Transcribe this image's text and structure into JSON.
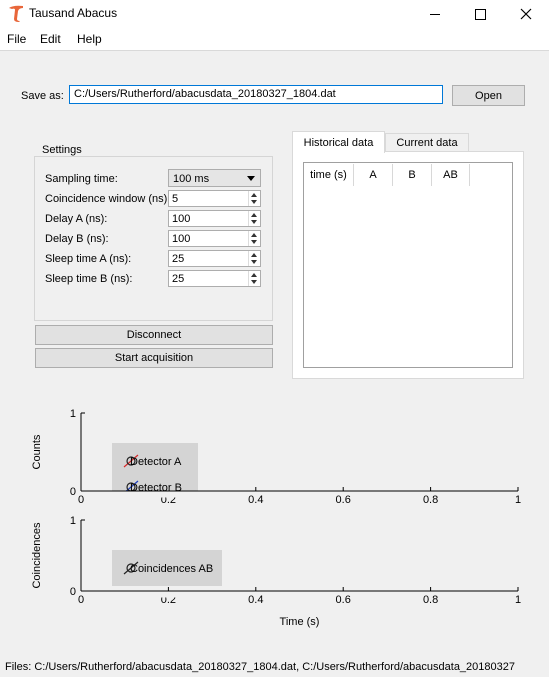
{
  "window": {
    "title": "Tausand Abacus"
  },
  "menu": {
    "file": "File",
    "edit": "Edit",
    "help": "Help"
  },
  "save": {
    "label": "Save as:",
    "path": "C:/Users/Rutherford/abacusdata_20180327_1804.dat",
    "open_label": "Open"
  },
  "settings": {
    "title": "Settings",
    "sampling": {
      "label": "Sampling time:",
      "value": "100 ms"
    },
    "coincidence": {
      "label": "Coincidence window (ns):",
      "value": "5"
    },
    "delay_a": {
      "label": "Delay A (ns):",
      "value": "100"
    },
    "delay_b": {
      "label": "Delay B (ns):",
      "value": "100"
    },
    "sleep_a": {
      "label": "Sleep time A (ns):",
      "value": "25"
    },
    "sleep_b": {
      "label": "Sleep time B (ns):",
      "value": "25"
    }
  },
  "buttons": {
    "disconnect": "Disconnect",
    "start": "Start acquisition"
  },
  "tabs": {
    "historical": "Historical data",
    "current": "Current data"
  },
  "table": {
    "columns": [
      "time (s)",
      "A",
      "B",
      "AB"
    ]
  },
  "chart_data": [
    {
      "type": "line",
      "title": "",
      "xlabel": "",
      "ylabel": "Counts",
      "xlim": [
        0,
        1
      ],
      "ylim": [
        0,
        1
      ],
      "x_ticks": [
        "0",
        "0.2",
        "0.4",
        "0.6",
        "0.8",
        "1"
      ],
      "y_ticks": [
        "0",
        "1"
      ],
      "series": [
        {
          "name": "Detector A",
          "color": "#d62728",
          "values": []
        },
        {
          "name": "Detector B",
          "color": "#1f3fbf",
          "values": []
        }
      ],
      "legend": "top-left"
    },
    {
      "type": "line",
      "title": "",
      "xlabel": "Time (s)",
      "ylabel": "Coincidences",
      "xlim": [
        0,
        1
      ],
      "ylim": [
        0,
        1
      ],
      "x_ticks": [
        "0",
        "0.2",
        "0.4",
        "0.6",
        "0.8",
        "1"
      ],
      "y_ticks": [
        "0",
        "1"
      ],
      "series": [
        {
          "name": "Coincidences AB",
          "color": "#222222",
          "values": []
        }
      ],
      "legend": "top-left"
    }
  ],
  "status": {
    "text": "Files: C:/Users/Rutherford/abacusdata_20180327_1804.dat, C:/Users/Rutherford/abacusdata_20180327"
  },
  "icons": {
    "logo": "tausand-logo-icon",
    "minimize": "minimize-icon",
    "maximize": "maximize-icon",
    "close": "close-icon"
  }
}
